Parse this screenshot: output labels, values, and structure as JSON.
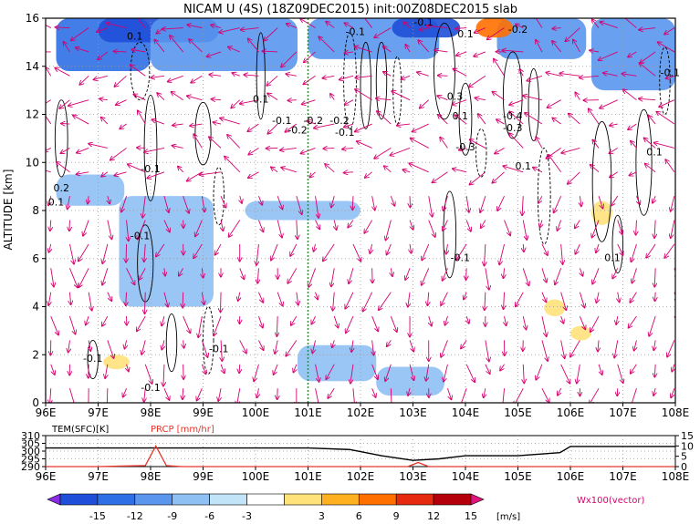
{
  "title": "NICAM U (4S) (18Z09DEC2015) init:00Z08DEC2015 slab",
  "top_panel": {
    "ylabel": "ALTITUDE [km]",
    "y_ticks": [
      "0",
      "2",
      "4",
      "6",
      "8",
      "10",
      "12",
      "14",
      "16"
    ],
    "x_ticks": [
      "96E",
      "97E",
      "98E",
      "99E",
      "100E",
      "101E",
      "102E",
      "103E",
      "104E",
      "105E",
      "106E",
      "107E",
      "108E"
    ],
    "contour_labels": [
      {
        "text": "0.1",
        "x": 97.7,
        "y": 15.1
      },
      {
        "text": "-0.1",
        "x": 101.9,
        "y": 15.3
      },
      {
        "text": "-0.1",
        "x": 103.2,
        "y": 15.7
      },
      {
        "text": "0.1",
        "x": 104.0,
        "y": 15.2
      },
      {
        "text": "-0.2",
        "x": 105.0,
        "y": 15.4
      },
      {
        "text": "-0.1",
        "x": 107.9,
        "y": 13.6
      },
      {
        "text": "0.3",
        "x": 103.8,
        "y": 12.6
      },
      {
        "text": "0.1",
        "x": 100.1,
        "y": 12.5
      },
      {
        "text": "-0.1",
        "x": 100.5,
        "y": 11.6
      },
      {
        "text": "-0.2",
        "x": 101.1,
        "y": 11.6
      },
      {
        "text": "-0.2",
        "x": 101.6,
        "y": 11.6
      },
      {
        "text": "-0.2",
        "x": 100.8,
        "y": 11.2
      },
      {
        "text": "-0.1",
        "x": 101.7,
        "y": 11.1
      },
      {
        "text": "0.1",
        "x": 103.9,
        "y": 11.8
      },
      {
        "text": "-0.4",
        "x": 104.9,
        "y": 11.8
      },
      {
        "text": "-0.3",
        "x": 104.9,
        "y": 11.3
      },
      {
        "text": "-0.3",
        "x": 104.0,
        "y": 10.5
      },
      {
        "text": "0.1",
        "x": 107.6,
        "y": 10.3
      },
      {
        "text": "-0.1",
        "x": 98.0,
        "y": 9.6
      },
      {
        "text": "0.1",
        "x": 105.1,
        "y": 9.7
      },
      {
        "text": "0.2",
        "x": 96.3,
        "y": 8.8
      },
      {
        "text": "0.1",
        "x": 96.2,
        "y": 8.2
      },
      {
        "text": "-0.1",
        "x": 97.8,
        "y": 6.8
      },
      {
        "text": "-0.1",
        "x": 103.9,
        "y": 5.9
      },
      {
        "text": "0.1",
        "x": 106.8,
        "y": 5.9
      },
      {
        "text": "-0.1",
        "x": 96.9,
        "y": 1.7
      },
      {
        "text": "-0.1",
        "x": 99.3,
        "y": 2.1
      },
      {
        "text": "-0.1",
        "x": 98.0,
        "y": 0.5
      }
    ]
  },
  "bottom_panel": {
    "tem_label": "TEM(SFC)[K]",
    "prcp_label": "PRCP [mm/hr]",
    "left_ticks": [
      "310",
      "305",
      "300",
      "295",
      "290"
    ],
    "right_ticks": [
      "15",
      "10",
      "5",
      "0"
    ],
    "x_ticks": [
      "96E",
      "97E",
      "98E",
      "99E",
      "100E",
      "101E",
      "102E",
      "103E",
      "104E",
      "105E",
      "106E",
      "107E",
      "108E"
    ]
  },
  "colorbar": {
    "labels": [
      "-15",
      "-12",
      "-9",
      "-6",
      "-3",
      "3",
      "6",
      "9",
      "12",
      "15"
    ],
    "unit": "[m/s]",
    "colors": [
      "#8a2be2",
      "#1f4fd8",
      "#2f6fe6",
      "#5a96ee",
      "#8ec0f4",
      "#c2e4f8",
      "#ffffff",
      "#ffe27a",
      "#ffb020",
      "#ff7000",
      "#e62a10",
      "#b4000a",
      "#e0147c"
    ]
  },
  "vector_label": "Wx100(vector)",
  "colors": {
    "vector": "#d6006e",
    "prcp": "#e8352a",
    "marker": "#00b000",
    "grid": "#9a9a9a"
  },
  "chart_data": [
    {
      "type": "heatmap",
      "title": "NICAM U (4S) (18Z09DEC2015) init:00Z08DEC2015 slab",
      "xlabel": "",
      "ylabel": "ALTITUDE [km]",
      "xlim": [
        96,
        108
      ],
      "ylim": [
        0,
        16
      ],
      "grid": true,
      "marker_line_x": 101,
      "shading_units": "m/s",
      "shaded_regions": [
        {
          "x": [
            96.2,
            98.0
          ],
          "y": [
            13.8,
            16.0
          ],
          "u": -9
        },
        {
          "x": [
            97.0,
            99.3
          ],
          "y": [
            15.0,
            16.0
          ],
          "u": -12
        },
        {
          "x": [
            98.0,
            100.8
          ],
          "y": [
            13.8,
            16.0
          ],
          "u": -6
        },
        {
          "x": [
            101.0,
            103.5
          ],
          "y": [
            14.3,
            16.0
          ],
          "u": -6
        },
        {
          "x": [
            102.6,
            103.9
          ],
          "y": [
            15.2,
            16.0
          ],
          "u": -12
        },
        {
          "x": [
            104.6,
            106.3
          ],
          "y": [
            14.3,
            16.0
          ],
          "u": -6
        },
        {
          "x": [
            106.4,
            108.0
          ],
          "y": [
            13.0,
            16.0
          ],
          "u": -6
        },
        {
          "x": [
            96.2,
            97.5
          ],
          "y": [
            8.2,
            9.5
          ],
          "u": -3
        },
        {
          "x": [
            97.4,
            99.2
          ],
          "y": [
            4.0,
            8.6
          ],
          "u": -3
        },
        {
          "x": [
            99.8,
            102.0
          ],
          "y": [
            7.6,
            8.4
          ],
          "u": -3
        },
        {
          "x": [
            100.8,
            102.3
          ],
          "y": [
            0.9,
            2.4
          ],
          "u": -3
        },
        {
          "x": [
            102.3,
            103.6
          ],
          "y": [
            0.3,
            1.5
          ],
          "u": -3
        },
        {
          "x": [
            104.2,
            104.9
          ],
          "y": [
            15.2,
            16.0
          ],
          "u": 9
        },
        {
          "x": [
            105.5,
            105.9
          ],
          "y": [
            3.6,
            4.3
          ],
          "u": 3
        },
        {
          "x": [
            106.4,
            106.8
          ],
          "y": [
            7.4,
            8.4
          ],
          "u": 3
        },
        {
          "x": [
            106.0,
            106.4
          ],
          "y": [
            2.6,
            3.2
          ],
          "u": 3
        },
        {
          "x": [
            97.1,
            97.6
          ],
          "y": [
            1.4,
            2.0
          ],
          "u": 3
        }
      ],
      "series": [
        {
          "name": "TEM(SFC)[K]",
          "x": [
            96,
            97,
            98,
            99,
            100,
            101,
            101.8,
            102.4,
            103,
            103.5,
            104,
            105,
            105.8,
            106.0,
            107,
            108
          ],
          "values": [
            302,
            302,
            302,
            302,
            302,
            302,
            301,
            297,
            294,
            295,
            297,
            297,
            299,
            303,
            303,
            303
          ]
        },
        {
          "name": "PRCP [mm/hr]",
          "x": [
            96,
            97,
            97.9,
            98.1,
            98.3,
            98.6,
            99,
            102.9,
            103.1,
            103.3,
            104,
            106,
            108
          ],
          "values": [
            0,
            0,
            0.5,
            10,
            0.5,
            0,
            0,
            0,
            2,
            0,
            0,
            0,
            0
          ]
        }
      ]
    }
  ]
}
